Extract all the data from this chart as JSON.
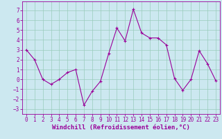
{
  "x": [
    0,
    1,
    2,
    3,
    4,
    5,
    6,
    7,
    8,
    9,
    10,
    11,
    12,
    13,
    14,
    15,
    16,
    17,
    18,
    19,
    20,
    21,
    22,
    23
  ],
  "y": [
    3,
    2,
    0,
    -0.5,
    0,
    0.7,
    1,
    -2.6,
    -1.2,
    -0.2,
    2.6,
    5.2,
    3.9,
    7.1,
    4.7,
    4.2,
    4.2,
    3.5,
    0.1,
    -1.1,
    0,
    2.9,
    1.6,
    -0.1
  ],
  "line_color": "#990099",
  "marker": "+",
  "marker_size": 3,
  "bg_color": "#cce8f0",
  "grid_color": "#99ccbb",
  "xlabel": "Windchill (Refroidissement éolien,°C)",
  "xlabel_color": "#990099",
  "tick_color": "#990099",
  "xlim": [
    -0.5,
    23.5
  ],
  "ylim": [
    -3.5,
    7.9
  ],
  "yticks": [
    -3,
    -2,
    -1,
    0,
    1,
    2,
    3,
    4,
    5,
    6,
    7
  ],
  "xticks": [
    0,
    1,
    2,
    3,
    4,
    5,
    6,
    7,
    8,
    9,
    10,
    11,
    12,
    13,
    14,
    15,
    16,
    17,
    18,
    19,
    20,
    21,
    22,
    23
  ],
  "line_width": 0.8,
  "xlabel_fontsize": 6.5,
  "tick_fontsize": 5.5
}
